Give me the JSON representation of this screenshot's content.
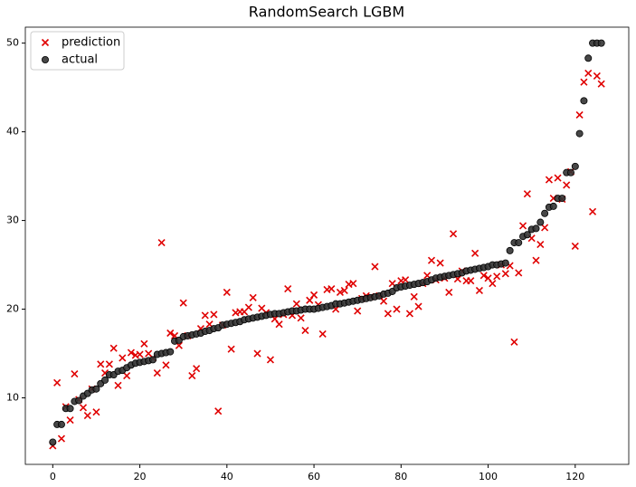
{
  "chart_data": {
    "type": "scatter",
    "title": "RandomSearch LGBM",
    "x": [
      0,
      1,
      2,
      3,
      4,
      5,
      6,
      7,
      8,
      9,
      10,
      11,
      12,
      13,
      14,
      15,
      16,
      17,
      18,
      19,
      20,
      21,
      22,
      23,
      24,
      25,
      26,
      27,
      28,
      29,
      30,
      31,
      32,
      33,
      34,
      35,
      36,
      37,
      38,
      39,
      40,
      41,
      42,
      43,
      44,
      45,
      46,
      47,
      48,
      49,
      50,
      51,
      52,
      53,
      54,
      55,
      56,
      57,
      58,
      59,
      60,
      61,
      62,
      63,
      64,
      65,
      66,
      67,
      68,
      69,
      70,
      71,
      72,
      73,
      74,
      75,
      76,
      77,
      78,
      79,
      80,
      81,
      82,
      83,
      84,
      85,
      86,
      87,
      88,
      89,
      90,
      91,
      92,
      93,
      94,
      95,
      96,
      97,
      98,
      99,
      100,
      101,
      102,
      103,
      104,
      105,
      106,
      107,
      108,
      109,
      110,
      111,
      112,
      113,
      114,
      115,
      116,
      117,
      118,
      119,
      120,
      121,
      122,
      123,
      124,
      125,
      126
    ],
    "series": [
      {
        "name": "prediction",
        "marker": "x",
        "color": "#e00000",
        "values": [
          4.6,
          11.7,
          5.4,
          9.0,
          7.5,
          12.7,
          9.8,
          8.9,
          8.0,
          11.0,
          8.4,
          13.8,
          12.8,
          13.8,
          15.6,
          11.4,
          14.5,
          12.5,
          15.1,
          14.8,
          14.9,
          16.1,
          15.0,
          14.5,
          12.8,
          27.5,
          13.7,
          17.3,
          17.0,
          15.9,
          20.7,
          17.0,
          12.5,
          13.3,
          17.8,
          19.3,
          18.3,
          19.4,
          8.5,
          18.2,
          21.9,
          15.5,
          19.6,
          19.7,
          19.7,
          20.2,
          21.3,
          15.0,
          20.1,
          19.6,
          14.3,
          18.9,
          18.3,
          19.4,
          22.3,
          19.3,
          20.6,
          19.0,
          17.6,
          21.0,
          21.6,
          20.5,
          17.2,
          22.2,
          22.3,
          20.0,
          21.9,
          22.1,
          22.8,
          22.9,
          19.8,
          21.2,
          21.5,
          21.4,
          24.8,
          21.5,
          20.9,
          19.5,
          22.9,
          20.0,
          23.2,
          23.3,
          19.5,
          21.4,
          20.3,
          22.9,
          23.8,
          25.5,
          23.3,
          25.2,
          23.5,
          21.9,
          28.5,
          23.4,
          24.3,
          23.2,
          23.2,
          26.3,
          22.1,
          23.8,
          23.5,
          22.9,
          23.7,
          25.0,
          24.0,
          24.9,
          16.3,
          24.1,
          29.4,
          33.0,
          28.0,
          25.5,
          27.3,
          29.2,
          34.6,
          32.5,
          34.8,
          32.4,
          34.0,
          35.5,
          27.1,
          41.9,
          45.6,
          46.6,
          31.0,
          46.3,
          45.4
        ]
      },
      {
        "name": "actual",
        "marker": "o",
        "color": "#333333",
        "values": [
          5.0,
          7.0,
          7.0,
          8.8,
          8.8,
          9.6,
          9.7,
          10.2,
          10.5,
          10.9,
          11.0,
          11.6,
          12.0,
          12.6,
          12.6,
          13.0,
          13.1,
          13.4,
          13.7,
          13.9,
          14.0,
          14.1,
          14.2,
          14.3,
          14.9,
          15.0,
          15.1,
          15.2,
          16.4,
          16.5,
          16.9,
          17.0,
          17.1,
          17.2,
          17.3,
          17.5,
          17.6,
          17.8,
          17.9,
          18.2,
          18.3,
          18.4,
          18.5,
          18.6,
          18.8,
          18.9,
          19.0,
          19.1,
          19.2,
          19.3,
          19.4,
          19.5,
          19.5,
          19.6,
          19.7,
          19.8,
          19.8,
          19.9,
          20.0,
          20.0,
          20.0,
          20.1,
          20.2,
          20.3,
          20.4,
          20.6,
          20.6,
          20.7,
          20.8,
          20.9,
          21.0,
          21.1,
          21.2,
          21.3,
          21.4,
          21.5,
          21.7,
          21.8,
          22.0,
          22.4,
          22.5,
          22.6,
          22.7,
          22.8,
          22.9,
          23.0,
          23.1,
          23.3,
          23.5,
          23.6,
          23.7,
          23.8,
          23.9,
          24.0,
          24.1,
          24.3,
          24.4,
          24.5,
          24.6,
          24.7,
          24.8,
          25.0,
          25.0,
          25.1,
          25.2,
          26.6,
          27.5,
          27.5,
          28.2,
          28.4,
          29.0,
          29.1,
          29.8,
          30.8,
          31.5,
          31.6,
          32.5,
          32.5,
          35.4,
          35.4,
          36.1,
          39.8,
          43.5,
          48.3,
          50.0,
          50.0,
          50.0
        ]
      }
    ],
    "xlim": [
      -6.3,
      132.3
    ],
    "xticks": [
      0,
      20,
      40,
      60,
      80,
      100,
      120
    ],
    "ylim": [
      2.5,
      51.8
    ],
    "yticks": [
      10,
      20,
      30,
      40,
      50
    ],
    "legend": "upper left",
    "grid": false
  }
}
